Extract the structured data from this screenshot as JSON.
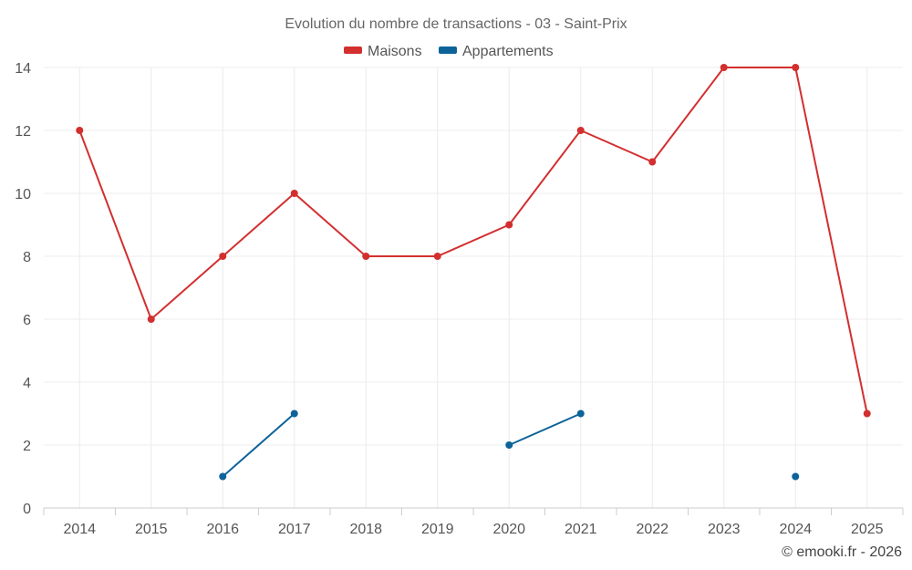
{
  "chart_data": {
    "type": "line",
    "title": "Evolution du nombre de transactions - 03 - Saint-Prix",
    "xlabel": "",
    "ylabel": "",
    "categories": [
      "2014",
      "2015",
      "2016",
      "2017",
      "2018",
      "2019",
      "2020",
      "2021",
      "2022",
      "2023",
      "2024",
      "2025"
    ],
    "ylim": [
      0,
      14
    ],
    "yticks": [
      "0",
      "2",
      "4",
      "6",
      "8",
      "10",
      "12",
      "14"
    ],
    "grid": true,
    "legend_position": "top-center",
    "series": [
      {
        "name": "Maisons",
        "color": "#d32f2f",
        "values": [
          12,
          6,
          8,
          10,
          8,
          8,
          9,
          12,
          11,
          14,
          14,
          3
        ]
      },
      {
        "name": "Appartements",
        "color": "#0d6399",
        "values": [
          null,
          null,
          1,
          3,
          null,
          null,
          2,
          3,
          null,
          null,
          1,
          null
        ]
      }
    ],
    "credit": "© emooki.fr - 2026"
  }
}
